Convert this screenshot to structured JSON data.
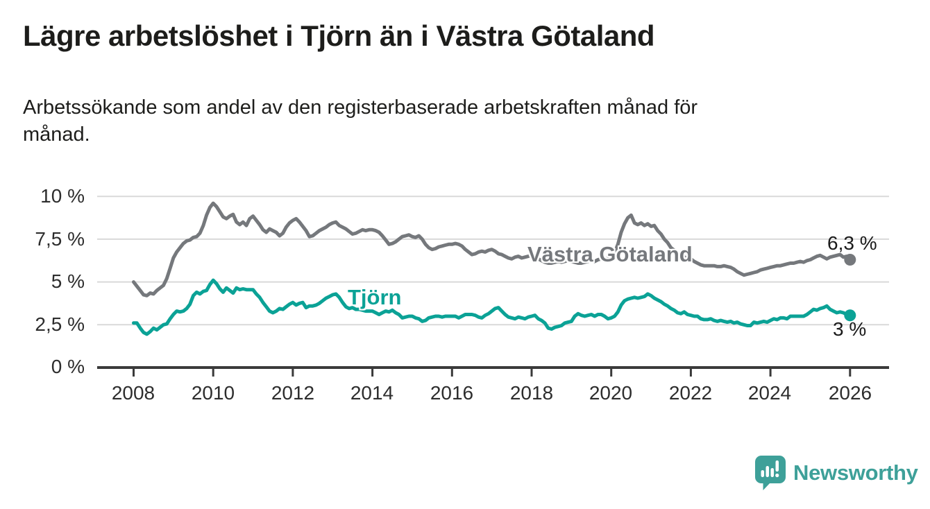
{
  "page": {
    "title": "Lägre arbetslöshet i Tjörn än i Västra Götaland",
    "subtitle": "Arbetssökande som andel av den registerbaserade arbetskraften månad för\nmånad."
  },
  "branding": {
    "name": "Newsworthy",
    "logo_icon": "bar-chart-speech-bubble",
    "logo_color": "#3EA099"
  },
  "chart_data": {
    "type": "line",
    "title": "Lägre arbetslöshet i Tjörn än i Västra Götaland",
    "x_axis": {
      "start_year": 2008,
      "step_months": 1,
      "end": "2026"
    },
    "x_tick_years": [
      2008,
      2010,
      2012,
      2014,
      2016,
      2018,
      2020,
      2022,
      2024,
      2026
    ],
    "y_ticks": [
      {
        "value": 10,
        "label": "10 %"
      },
      {
        "value": 7.5,
        "label": "7,5 %"
      },
      {
        "value": 5,
        "label": "5 %"
      },
      {
        "value": 2.5,
        "label": "2,5 %"
      },
      {
        "value": 0,
        "label": "0 %"
      }
    ],
    "ylim": [
      0,
      10.8
    ],
    "grid": "horizontal",
    "colors": {
      "gridline": "#d9d9d9",
      "axis": "#3a3a3a",
      "text": "#2d2d2d"
    },
    "series": [
      {
        "name": "Västra Götaland",
        "color": "#75787c",
        "end_label": "6,3 %",
        "end_value": 6.3,
        "values": [
          5.0,
          4.75,
          4.5,
          4.25,
          4.2,
          4.35,
          4.3,
          4.5,
          4.65,
          4.8,
          5.2,
          5.8,
          6.4,
          6.75,
          7.0,
          7.25,
          7.4,
          7.45,
          7.6,
          7.65,
          7.85,
          8.3,
          8.9,
          9.35,
          9.6,
          9.4,
          9.1,
          8.8,
          8.7,
          8.85,
          8.95,
          8.5,
          8.35,
          8.5,
          8.3,
          8.7,
          8.85,
          8.6,
          8.35,
          8.05,
          7.9,
          8.1,
          8.0,
          7.9,
          7.7,
          7.85,
          8.2,
          8.45,
          8.6,
          8.7,
          8.5,
          8.25,
          8.0,
          7.65,
          7.7,
          7.85,
          8.0,
          8.1,
          8.2,
          8.35,
          8.45,
          8.5,
          8.3,
          8.2,
          8.1,
          7.95,
          7.8,
          7.85,
          7.95,
          8.05,
          8.0,
          8.05,
          8.05,
          8.0,
          7.9,
          7.7,
          7.45,
          7.2,
          7.25,
          7.35,
          7.5,
          7.65,
          7.7,
          7.75,
          7.65,
          7.6,
          7.7,
          7.5,
          7.2,
          7.0,
          6.9,
          6.95,
          7.05,
          7.1,
          7.15,
          7.2,
          7.2,
          7.25,
          7.2,
          7.1,
          6.9,
          6.75,
          6.6,
          6.65,
          6.75,
          6.8,
          6.75,
          6.85,
          6.9,
          6.8,
          6.65,
          6.6,
          6.5,
          6.4,
          6.35,
          6.45,
          6.5,
          6.4,
          6.45,
          6.5,
          6.55,
          6.45,
          6.35,
          6.25,
          6.15,
          6.1,
          6.1,
          6.15,
          6.2,
          6.15,
          6.2,
          6.25,
          6.2,
          6.15,
          6.1,
          6.1,
          6.15,
          6.2,
          6.25,
          6.2,
          6.3,
          6.35,
          6.3,
          6.4,
          6.5,
          6.7,
          7.2,
          7.9,
          8.4,
          8.75,
          8.9,
          8.45,
          8.35,
          8.45,
          8.3,
          8.4,
          8.25,
          8.3,
          8.0,
          7.8,
          7.5,
          7.3,
          7.0,
          6.85,
          6.6,
          6.5,
          6.45,
          6.4,
          6.35,
          6.2,
          6.1,
          6.0,
          5.95,
          5.95,
          5.95,
          5.95,
          5.9,
          5.9,
          5.95,
          5.9,
          5.85,
          5.75,
          5.6,
          5.5,
          5.4,
          5.45,
          5.5,
          5.55,
          5.6,
          5.7,
          5.75,
          5.8,
          5.85,
          5.9,
          5.95,
          5.95,
          6.0,
          6.05,
          6.1,
          6.1,
          6.15,
          6.2,
          6.15,
          6.25,
          6.3,
          6.4,
          6.5,
          6.55,
          6.45,
          6.35,
          6.45,
          6.5,
          6.55,
          6.6,
          6.45,
          6.5,
          6.3
        ]
      },
      {
        "name": "Tjörn",
        "color": "#0ba296",
        "end_label": "3 %",
        "end_value": 3.0,
        "values": [
          2.6,
          2.6,
          2.3,
          2.05,
          1.95,
          2.1,
          2.3,
          2.2,
          2.35,
          2.5,
          2.55,
          2.85,
          3.1,
          3.3,
          3.25,
          3.3,
          3.45,
          3.7,
          4.2,
          4.4,
          4.3,
          4.45,
          4.5,
          4.85,
          5.1,
          4.9,
          4.6,
          4.4,
          4.65,
          4.5,
          4.35,
          4.65,
          4.55,
          4.6,
          4.55,
          4.55,
          4.55,
          4.3,
          4.1,
          3.8,
          3.55,
          3.3,
          3.2,
          3.3,
          3.45,
          3.4,
          3.55,
          3.7,
          3.8,
          3.65,
          3.75,
          3.8,
          3.5,
          3.6,
          3.6,
          3.65,
          3.75,
          3.9,
          4.05,
          4.15,
          4.25,
          4.3,
          4.1,
          3.8,
          3.55,
          3.45,
          3.5,
          3.4,
          3.4,
          3.35,
          3.3,
          3.3,
          3.3,
          3.2,
          3.1,
          3.2,
          3.3,
          3.25,
          3.35,
          3.2,
          3.1,
          2.9,
          2.95,
          3.0,
          3.0,
          2.9,
          2.85,
          2.7,
          2.75,
          2.9,
          2.95,
          3.0,
          3.0,
          2.95,
          3.0,
          3.0,
          3.0,
          3.0,
          2.9,
          3.0,
          3.1,
          3.1,
          3.1,
          3.05,
          2.95,
          2.9,
          3.05,
          3.15,
          3.3,
          3.45,
          3.5,
          3.3,
          3.1,
          2.95,
          2.9,
          2.85,
          2.95,
          2.9,
          2.85,
          2.95,
          3.0,
          3.05,
          2.85,
          2.75,
          2.6,
          2.3,
          2.25,
          2.35,
          2.4,
          2.45,
          2.6,
          2.65,
          2.7,
          3.0,
          3.15,
          3.05,
          3.0,
          3.05,
          3.1,
          3.0,
          3.1,
          3.1,
          3.0,
          2.85,
          2.9,
          3.0,
          3.25,
          3.65,
          3.9,
          4.0,
          4.05,
          4.1,
          4.05,
          4.1,
          4.15,
          4.3,
          4.2,
          4.05,
          3.95,
          3.85,
          3.7,
          3.6,
          3.45,
          3.35,
          3.2,
          3.15,
          3.25,
          3.1,
          3.05,
          3.0,
          3.0,
          2.85,
          2.8,
          2.8,
          2.85,
          2.75,
          2.7,
          2.75,
          2.7,
          2.65,
          2.7,
          2.6,
          2.65,
          2.55,
          2.5,
          2.45,
          2.45,
          2.65,
          2.6,
          2.65,
          2.7,
          2.65,
          2.75,
          2.85,
          2.8,
          2.9,
          2.9,
          2.85,
          3.0,
          3.0,
          3.0,
          3.0,
          3.0,
          3.1,
          3.25,
          3.4,
          3.35,
          3.45,
          3.5,
          3.6,
          3.4,
          3.3,
          3.2,
          3.25,
          3.2,
          3.1,
          3.05
        ]
      }
    ]
  }
}
